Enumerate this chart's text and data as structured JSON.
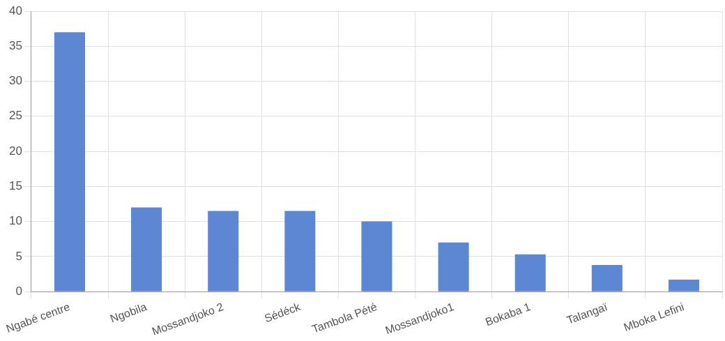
{
  "chart_data": {
    "type": "bar",
    "categories": [
      "Ngabé centre",
      "Ngobila",
      "Mossandjoko 2",
      "Sédéck",
      "Tambola Pété",
      "Mossandjoko1",
      "Bokaba 1",
      "Talangaï",
      "Mboka Lefini"
    ],
    "values": [
      37,
      12,
      11.5,
      11.5,
      10,
      7,
      5.3,
      3.8,
      1.7
    ],
    "color": "#5b87d3",
    "ylim": [
      0,
      40
    ],
    "yticks": [
      0,
      5,
      10,
      15,
      20,
      25,
      30,
      35,
      40
    ],
    "grid": true,
    "legend": false
  }
}
